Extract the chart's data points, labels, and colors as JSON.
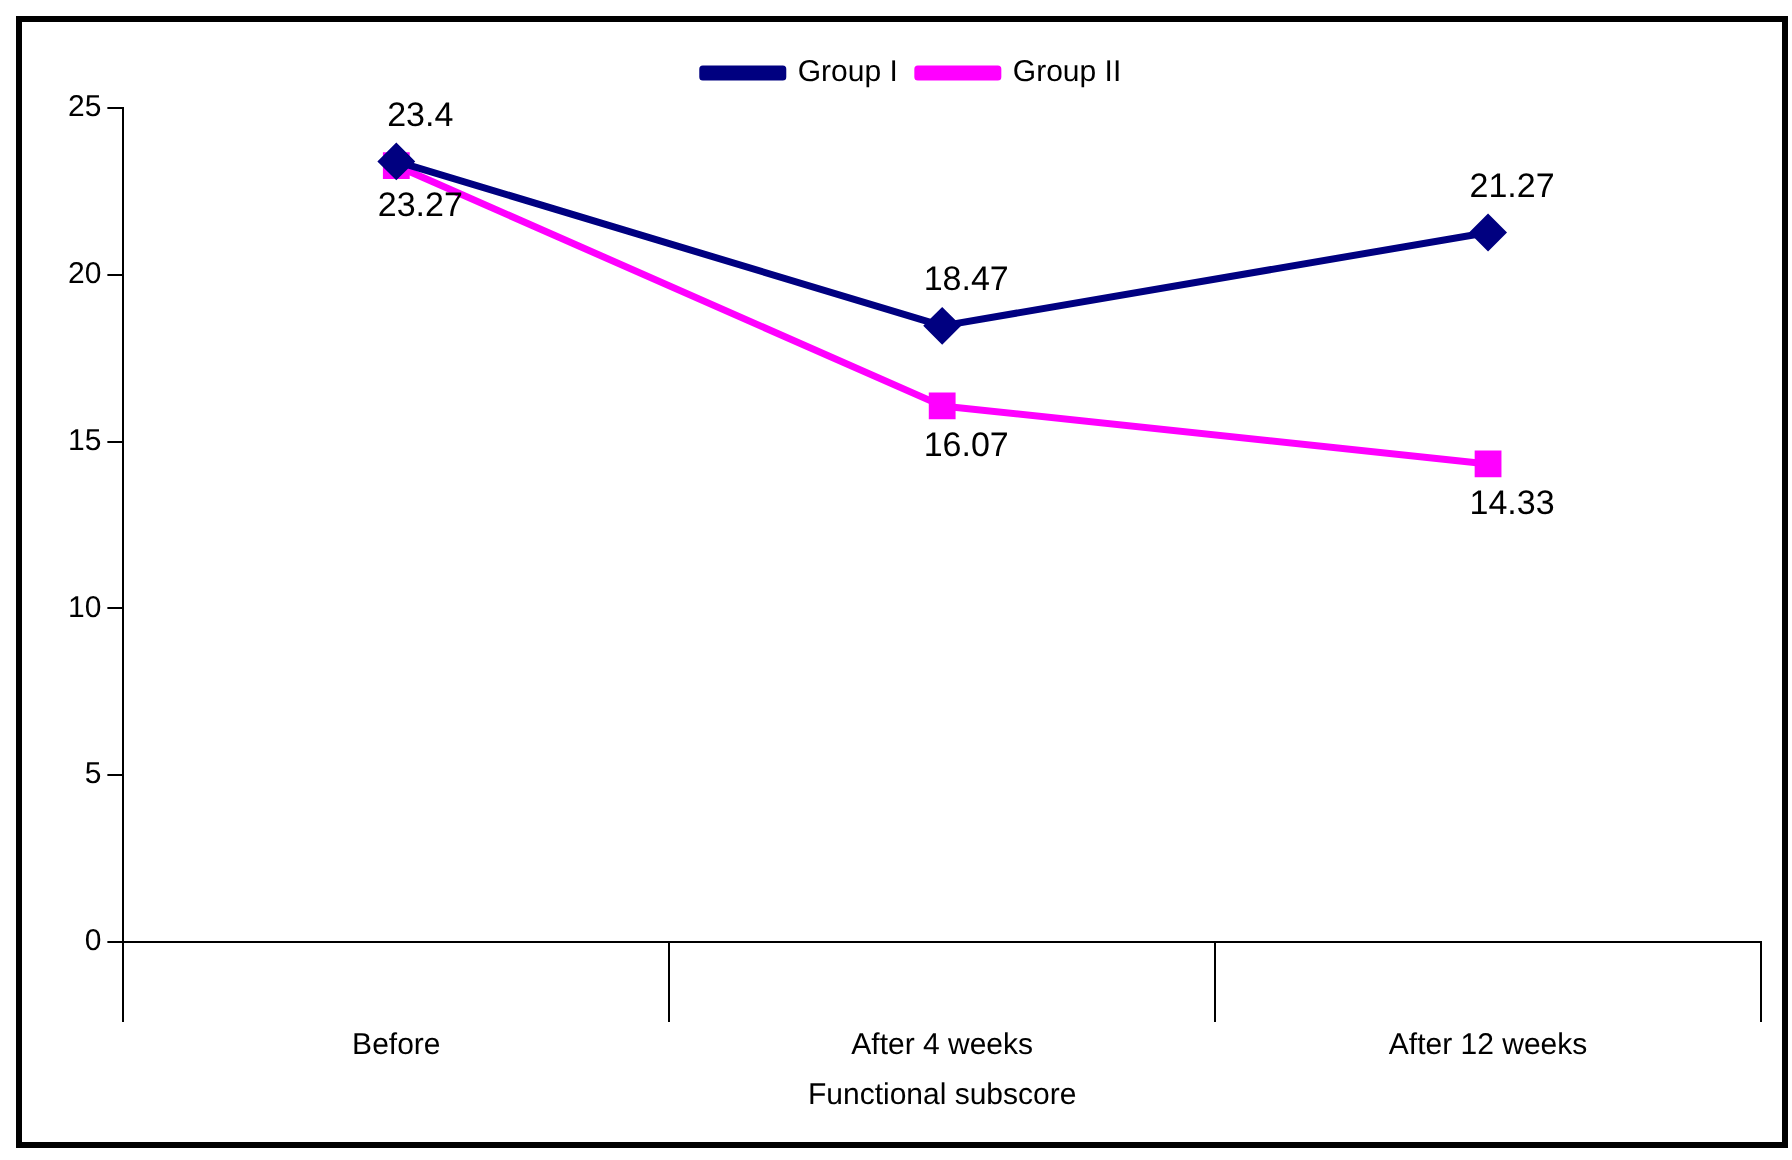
{
  "chart_data": {
    "type": "line",
    "xlabel": "Functional subscore",
    "categories": [
      "Before",
      "After 4 weeks",
      "After 12 weeks"
    ],
    "series": [
      {
        "name": "Group I",
        "color": "#000080",
        "values": [
          23.4,
          18.47,
          21.27
        ],
        "marker": "diamond"
      },
      {
        "name": "Group II",
        "color": "#ff00ff",
        "values": [
          23.27,
          16.07,
          14.33
        ],
        "marker": "square"
      }
    ],
    "ylim": [
      0,
      25
    ],
    "yticks": [
      0,
      5,
      10,
      15,
      20,
      25
    ],
    "grid": false,
    "legend": "top",
    "data_labels": true,
    "line_style": "solid"
  }
}
